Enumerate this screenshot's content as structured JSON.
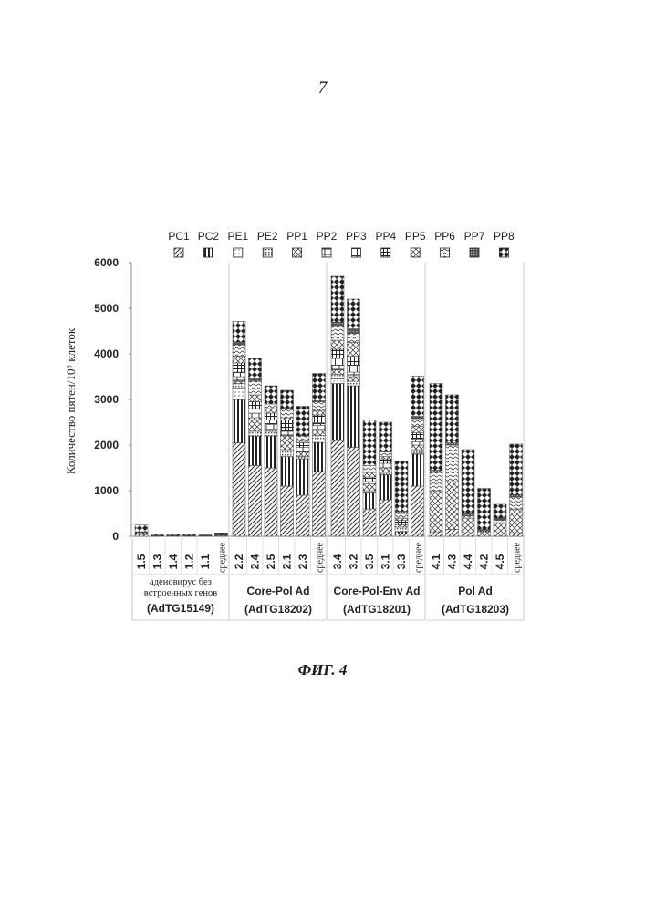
{
  "page": {
    "page_number": "7",
    "figure_caption": "ФИГ. 4"
  },
  "chart_data": {
    "type": "bar",
    "stacked": true,
    "title": "",
    "xlabel": "",
    "ylabel": "Количество пятен/10⁶ клеток",
    "ylim": [
      0,
      6000
    ],
    "yticks": [
      0,
      1000,
      2000,
      3000,
      4000,
      5000,
      6000
    ],
    "legend_position": "top",
    "legend": [
      "PC1",
      "PC2",
      "PE1",
      "PE2",
      "PP1",
      "PP2",
      "PP3",
      "PP4",
      "PP5",
      "PP6",
      "PP7",
      "PP8"
    ],
    "groups": [
      {
        "label_lines": [
          "аденовирус без",
          "встроенных генов",
          "(AdTG15149)"
        ],
        "categories": [
          "1.5",
          "1.3",
          "1.4",
          "1.2",
          "1.1",
          "среднее"
        ]
      },
      {
        "label_lines": [
          "Core-Pol Ad",
          "(AdTG18202)"
        ],
        "categories": [
          "2.2",
          "2.4",
          "2.5",
          "2.1",
          "2.3",
          "среднее"
        ]
      },
      {
        "label_lines": [
          "Core-Pol-Env Ad",
          "(AdTG18201)"
        ],
        "categories": [
          "3.4",
          "3.2",
          "3.5",
          "3.1",
          "3.3",
          "среднее"
        ]
      },
      {
        "label_lines": [
          "Pol Ad",
          "(AdTG18203)"
        ],
        "categories": [
          "4.1",
          "4.3",
          "4.4",
          "4.2",
          "4.5",
          "среднее"
        ]
      }
    ],
    "bars": [
      [
        [
          40,
          40,
          0,
          0,
          0,
          0,
          0,
          0,
          0,
          0,
          20,
          150
        ],
        [
          10,
          10,
          0,
          0,
          0,
          0,
          0,
          0,
          0,
          0,
          0,
          20
        ],
        [
          10,
          10,
          0,
          0,
          0,
          0,
          0,
          0,
          0,
          0,
          0,
          20
        ],
        [
          10,
          10,
          0,
          0,
          0,
          0,
          0,
          0,
          0,
          0,
          0,
          20
        ],
        [
          10,
          10,
          0,
          0,
          0,
          0,
          0,
          0,
          0,
          0,
          0,
          10
        ],
        [
          15,
          15,
          0,
          0,
          0,
          0,
          0,
          0,
          0,
          0,
          5,
          40
        ]
      ],
      [
        [
          2050,
          950,
          250,
          100,
          50,
          100,
          100,
          200,
          150,
          250,
          60,
          450
        ],
        [
          1550,
          650,
          0,
          100,
          300,
          100,
          100,
          150,
          150,
          300,
          50,
          450
        ],
        [
          1500,
          700,
          0,
          100,
          50,
          100,
          100,
          150,
          100,
          100,
          0,
          400
        ],
        [
          1100,
          650,
          0,
          150,
          300,
          100,
          0,
          250,
          50,
          200,
          0,
          400
        ],
        [
          900,
          800,
          0,
          50,
          100,
          100,
          0,
          100,
          50,
          100,
          0,
          650
        ],
        [
          1420,
          640,
          50,
          100,
          120,
          100,
          60,
          170,
          100,
          190,
          20,
          600
        ]
      ],
      [
        [
          2100,
          1250,
          100,
          100,
          100,
          100,
          150,
          200,
          200,
          300,
          100,
          1000
        ],
        [
          1950,
          1350,
          0,
          100,
          100,
          100,
          150,
          200,
          300,
          200,
          100,
          650
        ],
        [
          600,
          350,
          0,
          50,
          150,
          50,
          0,
          100,
          100,
          150,
          0,
          1000
        ],
        [
          800,
          550,
          0,
          50,
          100,
          100,
          0,
          100,
          50,
          100,
          0,
          650
        ],
        [
          50,
          50,
          0,
          100,
          50,
          0,
          0,
          100,
          50,
          100,
          50,
          1100
        ],
        [
          1100,
          700,
          20,
          80,
          100,
          70,
          60,
          140,
          140,
          170,
          50,
          880
        ]
      ],
      [
        [
          100,
          0,
          0,
          0,
          0,
          0,
          0,
          0,
          900,
          400,
          50,
          1900
        ],
        [
          150,
          0,
          0,
          0,
          0,
          0,
          0,
          0,
          1050,
          800,
          50,
          1050
        ],
        [
          50,
          0,
          0,
          0,
          0,
          0,
          0,
          0,
          350,
          50,
          50,
          1400
        ],
        [
          0,
          0,
          0,
          0,
          0,
          0,
          0,
          0,
          100,
          0,
          50,
          900
        ],
        [
          0,
          0,
          0,
          0,
          0,
          0,
          0,
          0,
          300,
          50,
          50,
          300
        ],
        [
          60,
          0,
          0,
          0,
          0,
          0,
          0,
          0,
          540,
          260,
          50,
          1110
        ]
      ]
    ]
  }
}
